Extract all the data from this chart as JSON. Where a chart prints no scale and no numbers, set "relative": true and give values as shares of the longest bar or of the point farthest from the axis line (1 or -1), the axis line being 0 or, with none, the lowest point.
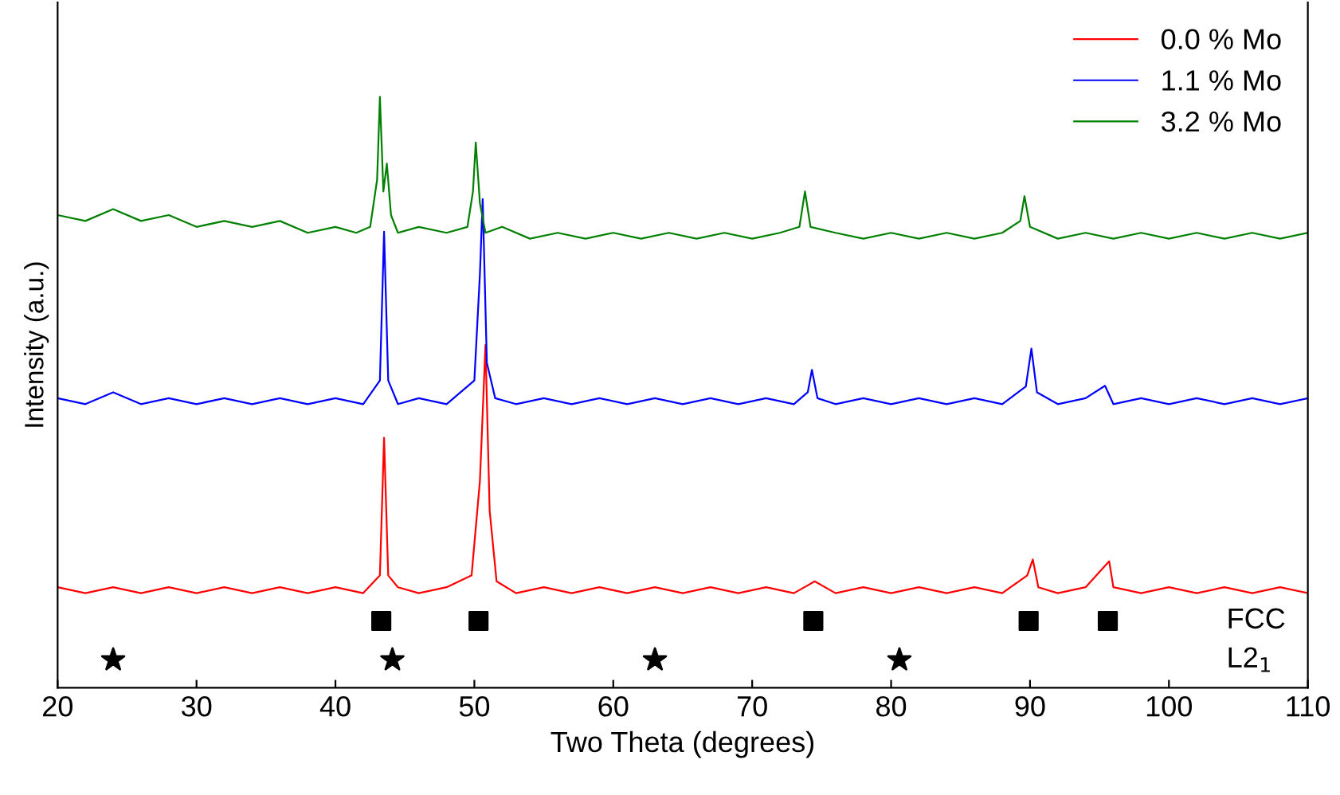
{
  "chart_data": {
    "type": "line",
    "relative": true,
    "xlabel": "Two Theta (degrees)",
    "ylabel": "Intensity (a.u.)",
    "xlim": [
      20,
      110
    ],
    "xticks": [
      20,
      30,
      40,
      50,
      60,
      70,
      80,
      90,
      100,
      110
    ],
    "legend": "top right",
    "annotations": [
      "FCC",
      "L2$_{1}$"
    ],
    "grid": false,
    "tick_labels": "x",
    "series": [
      {
        "name": "0.0 % Mo",
        "color": "#ff0000",
        "x": [
          20,
          22,
          24,
          26,
          28,
          30,
          32,
          34,
          36,
          38,
          40,
          42,
          43.2,
          43.5,
          43.8,
          44.5,
          46,
          48,
          49.8,
          50.4,
          50.8,
          51.1,
          51.6,
          53,
          55,
          57,
          59,
          61,
          63,
          65,
          67,
          69,
          71,
          73,
          74.5,
          76,
          78,
          80,
          82,
          84,
          86,
          88,
          89.8,
          90.2,
          90.6,
          92,
          94,
          95.7,
          96,
          98,
          100,
          102,
          104,
          106,
          108,
          110
        ],
        "values": [
          0.17,
          0.16,
          0.17,
          0.16,
          0.17,
          0.16,
          0.17,
          0.16,
          0.17,
          0.16,
          0.17,
          0.16,
          0.19,
          0.423,
          0.19,
          0.17,
          0.16,
          0.17,
          0.19,
          0.35,
          0.58,
          0.3,
          0.18,
          0.16,
          0.17,
          0.16,
          0.17,
          0.16,
          0.17,
          0.16,
          0.17,
          0.16,
          0.17,
          0.16,
          0.18,
          0.16,
          0.17,
          0.16,
          0.17,
          0.16,
          0.17,
          0.16,
          0.19,
          0.217,
          0.17,
          0.16,
          0.17,
          0.214,
          0.17,
          0.16,
          0.17,
          0.16,
          0.17,
          0.16,
          0.17,
          0.16
        ]
      },
      {
        "name": "1.1 % Mo",
        "color": "#0000ff",
        "x": [
          20,
          22,
          24,
          26,
          28,
          30,
          32,
          34,
          36,
          38,
          40,
          42,
          43.2,
          43.5,
          43.8,
          44.5,
          46,
          48,
          50.0,
          50.4,
          50.6,
          50.9,
          51.5,
          53,
          55,
          57,
          59,
          61,
          63,
          65,
          67,
          69,
          71,
          73,
          74.0,
          74.3,
          74.7,
          76,
          78,
          80,
          82,
          84,
          86,
          88,
          89.7,
          90.1,
          90.5,
          92,
          94,
          95.4,
          96,
          98,
          100,
          102,
          104,
          106,
          108,
          110
        ],
        "values": [
          0.49,
          0.48,
          0.5,
          0.48,
          0.49,
          0.48,
          0.49,
          0.48,
          0.49,
          0.48,
          0.49,
          0.48,
          0.52,
          0.772,
          0.52,
          0.48,
          0.49,
          0.48,
          0.52,
          0.7,
          0.827,
          0.55,
          0.49,
          0.48,
          0.49,
          0.48,
          0.49,
          0.48,
          0.49,
          0.48,
          0.49,
          0.48,
          0.49,
          0.48,
          0.5,
          0.538,
          0.49,
          0.48,
          0.49,
          0.48,
          0.49,
          0.48,
          0.49,
          0.48,
          0.51,
          0.574,
          0.5,
          0.48,
          0.49,
          0.511,
          0.48,
          0.49,
          0.48,
          0.49,
          0.48,
          0.49,
          0.48,
          0.49
        ]
      },
      {
        "name": "3.2 % Mo",
        "color": "#008000",
        "x": [
          20,
          22,
          24,
          26,
          28,
          30,
          32,
          34,
          36,
          38,
          40,
          41.5,
          42.5,
          43.0,
          43.2,
          43.45,
          43.7,
          44.0,
          44.5,
          46,
          48,
          49.5,
          49.9,
          50.1,
          50.4,
          50.8,
          52,
          54,
          56,
          58,
          60,
          62,
          64,
          66,
          68,
          70,
          72,
          73.4,
          73.8,
          74.2,
          76,
          78,
          80,
          82,
          84,
          86,
          88,
          89.3,
          89.6,
          90.0,
          92,
          94,
          96,
          98,
          100,
          102,
          104,
          106,
          108,
          110
        ],
        "values": [
          0.8,
          0.79,
          0.81,
          0.79,
          0.8,
          0.78,
          0.79,
          0.78,
          0.79,
          0.77,
          0.78,
          0.77,
          0.78,
          0.86,
          1.0,
          0.84,
          0.887,
          0.8,
          0.77,
          0.78,
          0.77,
          0.78,
          0.84,
          0.923,
          0.82,
          0.77,
          0.78,
          0.76,
          0.77,
          0.76,
          0.77,
          0.76,
          0.77,
          0.76,
          0.77,
          0.76,
          0.77,
          0.78,
          0.84,
          0.78,
          0.77,
          0.76,
          0.77,
          0.76,
          0.77,
          0.76,
          0.77,
          0.79,
          0.832,
          0.78,
          0.76,
          0.77,
          0.76,
          0.77,
          0.76,
          0.77,
          0.76,
          0.77,
          0.76,
          0.77
        ]
      },
      {
        "type": "scatter",
        "marker": "square",
        "color": "#000000",
        "x": [
          43.3,
          50.3,
          74.4,
          89.9,
          95.6
        ],
        "values": [
          0.113,
          0.113,
          0.113,
          0.113,
          0.113
        ]
      },
      {
        "type": "scatter",
        "marker": "star",
        "color": "#000000",
        "x": [
          24.0,
          44.1,
          63.0,
          80.6
        ],
        "values": [
          0.047,
          0.047,
          0.047,
          0.047
        ]
      }
    ]
  }
}
